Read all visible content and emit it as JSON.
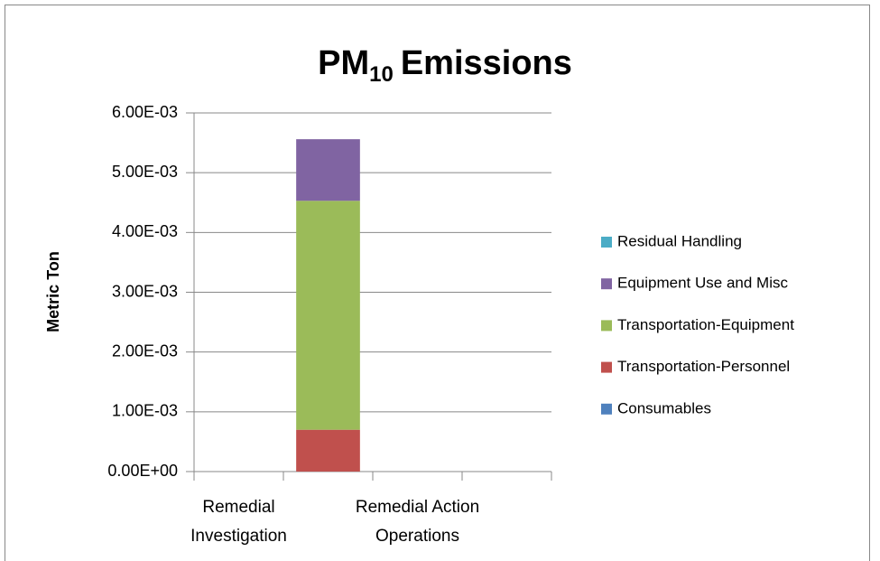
{
  "chart_data": {
    "type": "stacked_bar",
    "title": [
      "PM",
      "10",
      "Emissions"
    ],
    "y_label": "Metric Ton",
    "categories": [
      "Remedial Investigation",
      null,
      "Remedial Action Operations",
      null
    ],
    "series": [
      {
        "name": "Consumables",
        "color": "#4f81bd",
        "values": [
          0,
          0,
          0,
          0
        ]
      },
      {
        "name": "Transportation-Personnel",
        "color": "#c0504d",
        "values": [
          0,
          0.0007,
          0,
          0
        ]
      },
      {
        "name": "Transportation-Equipment",
        "color": "#9bbb59",
        "values": [
          0,
          0.00383,
          0,
          0
        ]
      },
      {
        "name": "Equipment Use and Misc",
        "color": "#8064a2",
        "values": [
          0,
          0.00103,
          0,
          0
        ]
      },
      {
        "name": "Residual Handling",
        "color": "#4bacc6",
        "values": [
          0,
          0,
          0,
          0
        ]
      }
    ],
    "ylim": [
      0,
      0.006
    ],
    "yticks": [
      {
        "value": 0,
        "label": "0.00E+00"
      },
      {
        "value": 0.001,
        "label": "1.00E-03"
      },
      {
        "value": 0.002,
        "label": "2.00E-03"
      },
      {
        "value": 0.003,
        "label": "3.00E-03"
      },
      {
        "value": 0.004,
        "label": "4.00E-03"
      },
      {
        "value": 0.005,
        "label": "5.00E-03"
      },
      {
        "value": 0.006,
        "label": "6.00E-03"
      }
    ],
    "grid": true,
    "legend": "right"
  }
}
